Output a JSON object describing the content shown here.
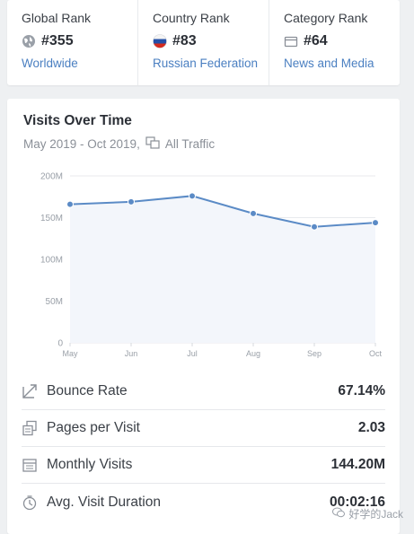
{
  "ranks": [
    {
      "title": "Global Rank",
      "value": "#355",
      "link": "Worldwide",
      "icon": "globe-icon"
    },
    {
      "title": "Country Rank",
      "value": "#83",
      "link": "Russian Federation",
      "icon": "russia-flag-icon"
    },
    {
      "title": "Category Rank",
      "value": "#64",
      "link": "News and Media",
      "icon": "category-icon"
    }
  ],
  "visits": {
    "title": "Visits Over Time",
    "date_range": "May 2019 - Oct 2019,",
    "traffic_label": "All Traffic"
  },
  "chart_data": {
    "type": "area",
    "title": "Visits Over Time",
    "categories": [
      "May",
      "Jun",
      "Jul",
      "Aug",
      "Sep",
      "Oct"
    ],
    "series": [
      {
        "values": [
          166000000,
          169000000,
          176000000,
          155000000,
          139000000,
          144000000
        ]
      }
    ],
    "ylim": [
      0,
      200000000
    ],
    "yticks": [
      "0",
      "50M",
      "100M",
      "150M",
      "200M"
    ],
    "grid": true,
    "line_color": "#5b8bc6",
    "fill_color": "#f3f6fb"
  },
  "metrics": [
    {
      "label": "Bounce Rate",
      "value": "67.14%",
      "icon": "bounce-icon"
    },
    {
      "label": "Pages per Visit",
      "value": "2.03",
      "icon": "pages-icon"
    },
    {
      "label": "Monthly Visits",
      "value": "144.20M",
      "icon": "calendar-icon"
    },
    {
      "label": "Avg. Visit Duration",
      "value": "00:02:16",
      "icon": "timer-icon"
    }
  ],
  "watermark": "好学的Jack"
}
